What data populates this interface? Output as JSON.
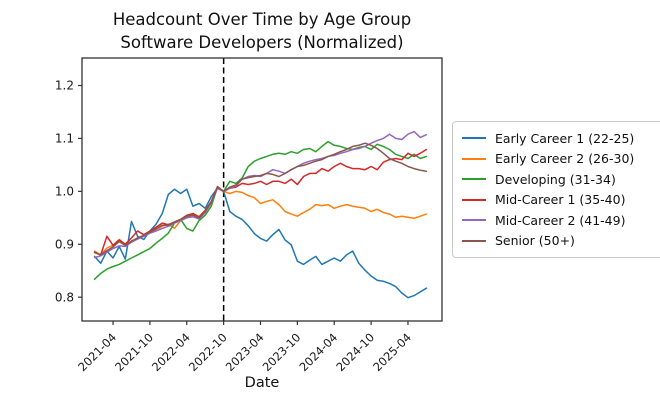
{
  "chart_data": {
    "type": "line",
    "title": "Headcount Over Time by Age Group",
    "subtitle": "Software Developers (Normalized)",
    "xlabel": "Date",
    "ylabel": "",
    "grid": false,
    "legend_position": "right-outside",
    "ylim": [
      0.755,
      1.252
    ],
    "y_ticks": [
      "0.8",
      "0.9",
      "1.0",
      "1.1",
      "1.2"
    ],
    "y_tick_values": [
      0.8,
      0.9,
      1.0,
      1.1,
      1.2
    ],
    "x_tick_labels": [
      "2021-04",
      "2021-10",
      "2022-04",
      "2022-10",
      "2023-04",
      "2023-10",
      "2024-04",
      "2024-10",
      "2025-04"
    ],
    "vline": {
      "x": "2022-10",
      "style": "dashed",
      "color": "#000000"
    },
    "axis_color": "#333333",
    "text_color": "#1a1a1a",
    "x": [
      "2021-01",
      "2021-02",
      "2021-03",
      "2021-04",
      "2021-05",
      "2021-06",
      "2021-07",
      "2021-08",
      "2021-09",
      "2021-10",
      "2021-11",
      "2021-12",
      "2022-01",
      "2022-02",
      "2022-03",
      "2022-04",
      "2022-05",
      "2022-06",
      "2022-07",
      "2022-08",
      "2022-09",
      "2022-10",
      "2022-11",
      "2022-12",
      "2023-01",
      "2023-02",
      "2023-03",
      "2023-04",
      "2023-05",
      "2023-06",
      "2023-07",
      "2023-08",
      "2023-09",
      "2023-10",
      "2023-11",
      "2023-12",
      "2024-01",
      "2024-02",
      "2024-03",
      "2024-04",
      "2024-05",
      "2024-06",
      "2024-07",
      "2024-08",
      "2024-09",
      "2024-10",
      "2024-11",
      "2024-12",
      "2025-01",
      "2025-02",
      "2025-03",
      "2025-04",
      "2025-05",
      "2025-06",
      "2025-07"
    ],
    "series": [
      {
        "name": "Early Career 1 (22-25)",
        "color": "#1f77b4",
        "values": [
          0.877,
          0.864,
          0.887,
          0.874,
          0.896,
          0.872,
          0.943,
          0.915,
          0.909,
          0.925,
          0.938,
          0.958,
          0.994,
          1.004,
          0.996,
          1.004,
          0.972,
          0.977,
          0.968,
          0.99,
          1.006,
          1.0,
          0.962,
          0.953,
          0.947,
          0.935,
          0.92,
          0.911,
          0.906,
          0.918,
          0.928,
          0.908,
          0.899,
          0.868,
          0.862,
          0.87,
          0.877,
          0.862,
          0.868,
          0.874,
          0.868,
          0.88,
          0.887,
          0.864,
          0.851,
          0.84,
          0.832,
          0.83,
          0.826,
          0.82,
          0.808,
          0.799,
          0.803,
          0.81,
          0.817
        ]
      },
      {
        "name": "Early Career 2 (26-30)",
        "color": "#ff7f0e",
        "values": [
          0.887,
          0.88,
          0.893,
          0.898,
          0.909,
          0.9,
          0.905,
          0.91,
          0.916,
          0.922,
          0.928,
          0.934,
          0.938,
          0.93,
          0.945,
          0.952,
          0.958,
          0.952,
          0.964,
          0.98,
          1.008,
          1.0,
          0.996,
          1.0,
          0.998,
          0.992,
          0.988,
          0.977,
          0.981,
          0.984,
          0.975,
          0.962,
          0.957,
          0.953,
          0.96,
          0.966,
          0.975,
          0.973,
          0.975,
          0.968,
          0.972,
          0.975,
          0.972,
          0.97,
          0.968,
          0.962,
          0.966,
          0.96,
          0.957,
          0.951,
          0.953,
          0.951,
          0.949,
          0.953,
          0.957
        ]
      },
      {
        "name": "Developing (31-34)",
        "color": "#2ca02c",
        "values": [
          0.834,
          0.845,
          0.853,
          0.858,
          0.862,
          0.868,
          0.874,
          0.88,
          0.886,
          0.892,
          0.902,
          0.911,
          0.921,
          0.94,
          0.947,
          0.93,
          0.925,
          0.945,
          0.955,
          0.972,
          1.008,
          1.0,
          1.019,
          1.015,
          1.025,
          1.047,
          1.057,
          1.062,
          1.066,
          1.07,
          1.072,
          1.07,
          1.075,
          1.072,
          1.079,
          1.081,
          1.075,
          1.085,
          1.094,
          1.087,
          1.085,
          1.081,
          1.079,
          1.083,
          1.085,
          1.079,
          1.089,
          1.085,
          1.079,
          1.07,
          1.066,
          1.062,
          1.07,
          1.062,
          1.066
        ]
      },
      {
        "name": "Mid-Career 1 (35-40)",
        "color": "#d62728",
        "values": [
          0.885,
          0.88,
          0.915,
          0.898,
          0.908,
          0.9,
          0.912,
          0.925,
          0.918,
          0.925,
          0.932,
          0.94,
          0.937,
          0.942,
          0.947,
          0.955,
          0.958,
          0.952,
          0.964,
          0.981,
          1.009,
          1.0,
          1.006,
          1.008,
          1.015,
          1.013,
          1.015,
          1.019,
          1.013,
          1.019,
          1.019,
          1.015,
          1.023,
          1.013,
          1.028,
          1.034,
          1.034,
          1.043,
          1.038,
          1.047,
          1.053,
          1.047,
          1.043,
          1.043,
          1.041,
          1.047,
          1.041,
          1.055,
          1.06,
          1.062,
          1.06,
          1.072,
          1.066,
          1.072,
          1.079
        ]
      },
      {
        "name": "Mid-Career 2 (41-49)",
        "color": "#9467bd",
        "values": [
          0.875,
          0.878,
          0.885,
          0.892,
          0.897,
          0.896,
          0.904,
          0.91,
          0.915,
          0.921,
          0.925,
          0.93,
          0.934,
          0.94,
          0.945,
          0.95,
          0.952,
          0.948,
          0.96,
          0.978,
          1.006,
          1.0,
          1.006,
          1.01,
          1.023,
          1.028,
          1.03,
          1.028,
          1.034,
          1.041,
          1.038,
          1.034,
          1.041,
          1.047,
          1.053,
          1.057,
          1.06,
          1.062,
          1.066,
          1.068,
          1.072,
          1.075,
          1.079,
          1.081,
          1.085,
          1.091,
          1.096,
          1.1,
          1.108,
          1.1,
          1.098,
          1.108,
          1.113,
          1.102,
          1.107
        ]
      },
      {
        "name": "Senior (50+)",
        "color": "#8c564b",
        "values": [
          0.884,
          0.88,
          0.888,
          0.895,
          0.905,
          0.898,
          0.906,
          0.912,
          0.917,
          0.923,
          0.929,
          0.936,
          0.936,
          0.942,
          0.947,
          0.953,
          0.955,
          0.95,
          0.962,
          0.98,
          1.008,
          1.0,
          1.008,
          1.012,
          1.023,
          1.026,
          1.028,
          1.03,
          1.034,
          1.032,
          1.028,
          1.034,
          1.041,
          1.047,
          1.049,
          1.053,
          1.057,
          1.06,
          1.066,
          1.07,
          1.075,
          1.079,
          1.085,
          1.087,
          1.091,
          1.087,
          1.081,
          1.072,
          1.062,
          1.057,
          1.053,
          1.047,
          1.043,
          1.04,
          1.038
        ]
      }
    ]
  }
}
